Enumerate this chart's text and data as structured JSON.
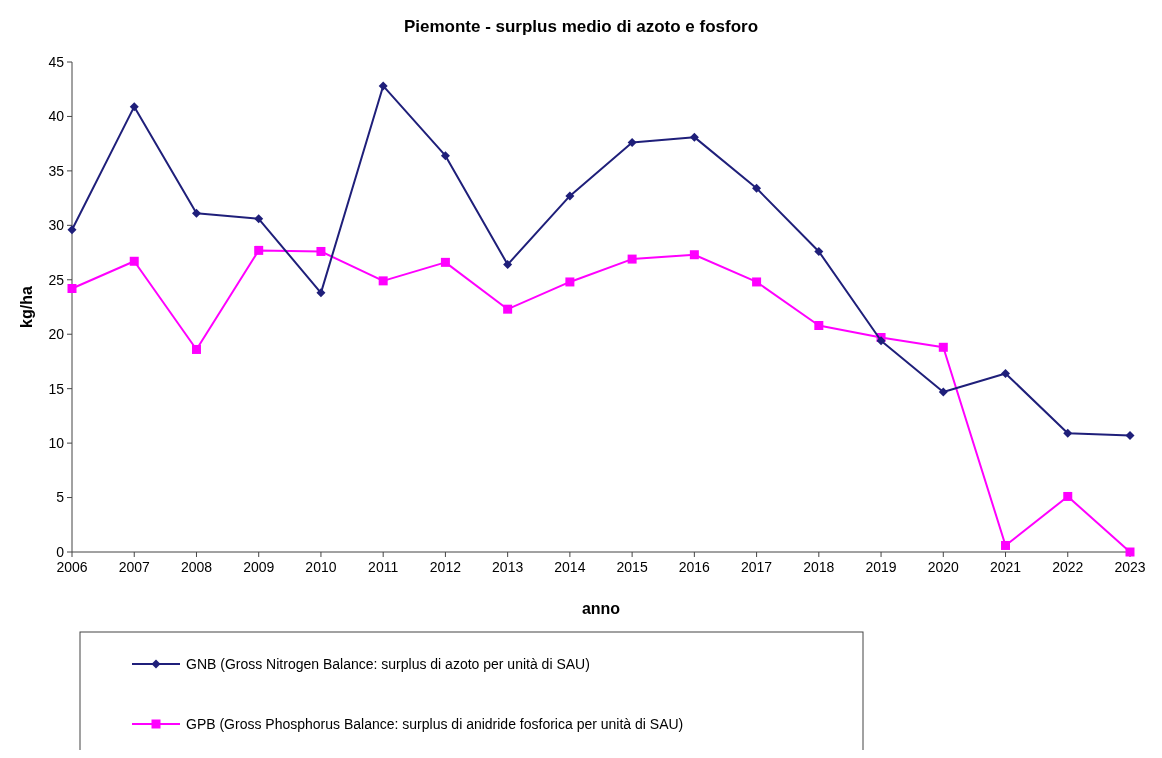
{
  "chart_data": {
    "type": "line",
    "title": "Piemonte - surplus medio di azoto e fosforo",
    "xlabel": "anno",
    "ylabel": "kg/ha",
    "categories": [
      "2006",
      "2007",
      "2008",
      "2009",
      "2010",
      "2011",
      "2012",
      "2013",
      "2014",
      "2015",
      "2016",
      "2017",
      "2018",
      "2019",
      "2020",
      "2021",
      "2022",
      "2023"
    ],
    "series": [
      {
        "name": "GNB (Gross Nitrogen Balance: surplus di azoto per unità di SAU)",
        "color": "#1f1f7a",
        "marker": "diamond",
        "values": [
          29.6,
          40.9,
          31.1,
          30.6,
          23.8,
          42.8,
          36.4,
          26.4,
          32.7,
          37.6,
          38.1,
          33.4,
          27.6,
          19.4,
          14.7,
          16.4,
          10.9,
          10.7
        ]
      },
      {
        "name": "GPB (Gross Phosphorus Balance: surplus di anidride fosforica per unità di SAU)",
        "color": "#ff00ff",
        "marker": "square",
        "values": [
          24.2,
          26.7,
          18.6,
          27.7,
          27.6,
          24.9,
          26.6,
          22.3,
          24.8,
          26.9,
          27.3,
          24.8,
          20.8,
          19.7,
          18.8,
          0.6,
          5.1,
          0
        ]
      }
    ],
    "ylim": [
      0,
      45
    ],
    "yticks": [
      0,
      5,
      10,
      15,
      20,
      25,
      30,
      35,
      40,
      45
    ],
    "grid": false,
    "legend": "bottom"
  }
}
